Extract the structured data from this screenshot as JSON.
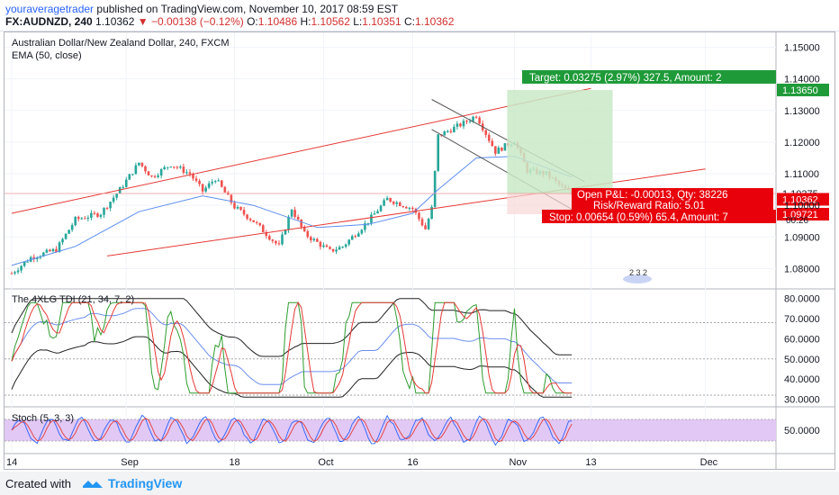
{
  "header": {
    "user": "youraveragetrader",
    "published": " published on TradingView.com, November 10, 2017 08:59 EST",
    "symbol": "FX:AUDNZD, 240",
    "price": "1.10362",
    "change": "−0.00138 (−0.12%)",
    "o_label": "O:",
    "o": "1.10486",
    "h_label": "H:",
    "h": "1.10562",
    "l_label": "L:",
    "l": "1.10351",
    "c_label": "C:",
    "c": "1.10362"
  },
  "footer": {
    "created": "Created with",
    "brand": "TradingView"
  },
  "colors": {
    "up": "#26a69a",
    "down": "#ef5350",
    "channel": "#e53935",
    "ema": "#5b8def",
    "target": "#1e9a38",
    "stop": "#e8000b",
    "stoch_bg": "#e1c8f5"
  },
  "chart_data": [
    {
      "type": "line",
      "panel": "price",
      "title": "Australian Dollar/New Zealand Dollar, 240, FXCM",
      "series_label": "EMA (50, close)",
      "ylim": [
        1.075,
        1.153
      ],
      "y_ticks": [
        "1.15000",
        "1.14000",
        "1.13000",
        "1.12000",
        "1.11000",
        "1.10000",
        "1.09000",
        "1.08000"
      ],
      "x_ticks": [
        "14",
        "Sep",
        "18",
        "Oct",
        "16",
        "Nov",
        "13",
        "Dec"
      ],
      "price_path": [
        [
          "Aug 14",
          1.0785
        ],
        [
          "Aug 17",
          1.0835
        ],
        [
          "Aug 21",
          1.086
        ],
        [
          "Aug 24",
          1.0955
        ],
        [
          "Aug 28",
          1.0975
        ],
        [
          "Aug 31",
          1.105
        ],
        [
          "Sep 3",
          1.1135
        ],
        [
          "Sep 5",
          1.109
        ],
        [
          "Sep 8",
          1.113
        ],
        [
          "Sep 11",
          1.11
        ],
        [
          "Sep 13",
          1.1045
        ],
        [
          "Sep 15",
          1.1085
        ],
        [
          "Sep 18",
          1.0995
        ],
        [
          "Sep 21",
          1.095
        ],
        [
          "Sep 25",
          1.087
        ],
        [
          "Sep 27",
          1.099
        ],
        [
          "Sep 29",
          1.091
        ],
        [
          "Oct 3",
          1.0855
        ],
        [
          "Oct 5",
          1.087
        ],
        [
          "Oct 9",
          1.095
        ],
        [
          "Oct 12",
          1.102
        ],
        [
          "Oct 16",
          1.099
        ],
        [
          "Oct 18",
          1.0925
        ],
        [
          "Oct 19",
          1.099
        ],
        [
          "Oct 20",
          1.122
        ],
        [
          "Oct 24",
          1.126
        ],
        [
          "Oct 26",
          1.1285
        ],
        [
          "Oct 29",
          1.117
        ],
        [
          "Nov 1",
          1.1205
        ],
        [
          "Nov 3",
          1.111
        ],
        [
          "Nov 6",
          1.11
        ],
        [
          "Nov 8",
          1.1065
        ],
        [
          "Nov 10",
          1.1036
        ]
      ],
      "ema_path": [
        [
          "Aug 14",
          1.081
        ],
        [
          "Aug 24",
          1.087
        ],
        [
          "Sep 3",
          1.098
        ],
        [
          "Sep 13",
          1.103
        ],
        [
          "Sep 21",
          1.1
        ],
        [
          "Oct 1",
          1.093
        ],
        [
          "Oct 9",
          1.094
        ],
        [
          "Oct 16",
          1.0975
        ],
        [
          "Oct 20",
          1.105
        ],
        [
          "Oct 26",
          1.115
        ],
        [
          "Nov 1",
          1.1155
        ],
        [
          "Nov 10",
          1.109
        ]
      ],
      "upper_channel": [
        [
          "Aug 14",
          1.0975
        ],
        [
          "Nov 13",
          1.137
        ]
      ],
      "lower_channel": [
        [
          "Aug 29",
          1.084
        ],
        [
          "Dec 1",
          1.1115
        ]
      ],
      "falling_upper": [
        [
          "Oct 19",
          1.1335
        ],
        [
          "Nov 12",
          1.1075
        ]
      ],
      "falling_lower": [
        [
          "Oct 19",
          1.124
        ],
        [
          "Nov 12",
          1.0965
        ]
      ],
      "position": {
        "target_text": "Target: 0.03275 (2.97%) 327.5, Amount: 2",
        "open_text": "Open P&L: -0.00013, Qty: 38226",
        "rr_text": "Risk/Reward Ratio: 5.01",
        "stop_text": "Stop: 0.00654 (0.59%) 65.4, Amount: 7",
        "target_price": "1.13650",
        "entry_price": "1.10375",
        "stop_price": "1.09721",
        "last_price": "1.10362",
        "countdown": "00:26"
      },
      "watermark": "2 3 2"
    },
    {
      "type": "line",
      "panel": "tdi",
      "title": "The 4XLG TDI (21, 34, 7, 2)",
      "ylim": [
        28,
        83
      ],
      "y_ticks": [
        "80.0000",
        "70.0000",
        "60.0000",
        "50.0000",
        "40.0000",
        "30.0000"
      ],
      "levels": [
        32,
        50,
        68
      ]
    },
    {
      "type": "line",
      "panel": "stoch",
      "title": "Stoch (5, 3, 3)",
      "ylim": [
        -5,
        105
      ],
      "y_ticks": [
        "50.0000"
      ],
      "band": [
        20,
        80
      ]
    }
  ]
}
